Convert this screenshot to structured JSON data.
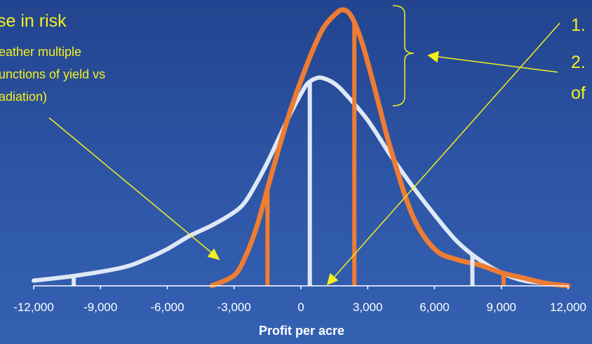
{
  "chart_data": {
    "type": "line",
    "xlabel": "Profit per acre",
    "ylabel": "",
    "xlim": [
      -12000,
      12000
    ],
    "xticks": [
      -12000,
      -9000,
      -6000,
      -3000,
      0,
      3000,
      6000,
      9000,
      12000
    ],
    "tick_labels": [
      "-12,000",
      "-9,000",
      "-6,000",
      "-3,000",
      "0",
      "3,000",
      "6,000",
      "9,000",
      "12,000"
    ],
    "grid": false,
    "colors": {
      "wide": "#dfe8f7",
      "narrow": "#ee7c32",
      "annotation": "#f5f01c",
      "background": "#2d55a5"
    },
    "series": [
      {
        "key": "wide",
        "points": [
          [
            -12000,
            0.02
          ],
          [
            -10000,
            0.04
          ],
          [
            -8000,
            0.07
          ],
          [
            -7000,
            0.1
          ],
          [
            -6000,
            0.14
          ],
          [
            -5000,
            0.19
          ],
          [
            -4000,
            0.23
          ],
          [
            -3000,
            0.28
          ],
          [
            -2500,
            0.32
          ],
          [
            -2000,
            0.39
          ],
          [
            -1500,
            0.47
          ],
          [
            -1000,
            0.56
          ],
          [
            -500,
            0.65
          ],
          [
            0,
            0.73
          ],
          [
            300,
            0.77
          ],
          [
            700,
            0.79
          ],
          [
            1000,
            0.79
          ],
          [
            1500,
            0.77
          ],
          [
            2000,
            0.73
          ],
          [
            3000,
            0.63
          ],
          [
            4000,
            0.5
          ],
          [
            5000,
            0.38
          ],
          [
            6000,
            0.27
          ],
          [
            7000,
            0.17
          ],
          [
            8000,
            0.1
          ],
          [
            9000,
            0.05
          ],
          [
            10000,
            0.02
          ],
          [
            11000,
            0.01
          ],
          [
            12000,
            0.0
          ]
        ],
        "vlines": [
          -10200,
          400,
          7700
        ]
      },
      {
        "key": "narrow",
        "points": [
          [
            -4000,
            0
          ],
          [
            -3000,
            0.04
          ],
          [
            -2500,
            0.11
          ],
          [
            -2000,
            0.22
          ],
          [
            -1500,
            0.37
          ],
          [
            -1000,
            0.52
          ],
          [
            -500,
            0.66
          ],
          [
            0,
            0.78
          ],
          [
            500,
            0.89
          ],
          [
            1000,
            0.98
          ],
          [
            1500,
            1.03
          ],
          [
            1900,
            1.05
          ],
          [
            2300,
            1.02
          ],
          [
            2800,
            0.91
          ],
          [
            3500,
            0.69
          ],
          [
            4000,
            0.53
          ],
          [
            5000,
            0.27
          ],
          [
            6000,
            0.14
          ],
          [
            7000,
            0.1
          ],
          [
            8000,
            0.08
          ],
          [
            9000,
            0.05
          ],
          [
            10000,
            0.03
          ],
          [
            11000,
            0.01
          ],
          [
            12000,
            0.0
          ]
        ],
        "vlines": [
          -1500,
          2400,
          9100
        ]
      }
    ]
  },
  "annotations": {
    "left_title": "se in risk",
    "left_line1": "eather multiple",
    "left_line2": "unctions of yield vs",
    "left_line3": "adiation)",
    "right_line1": "1.",
    "right_line2": "2.",
    "right_line3": "of"
  }
}
